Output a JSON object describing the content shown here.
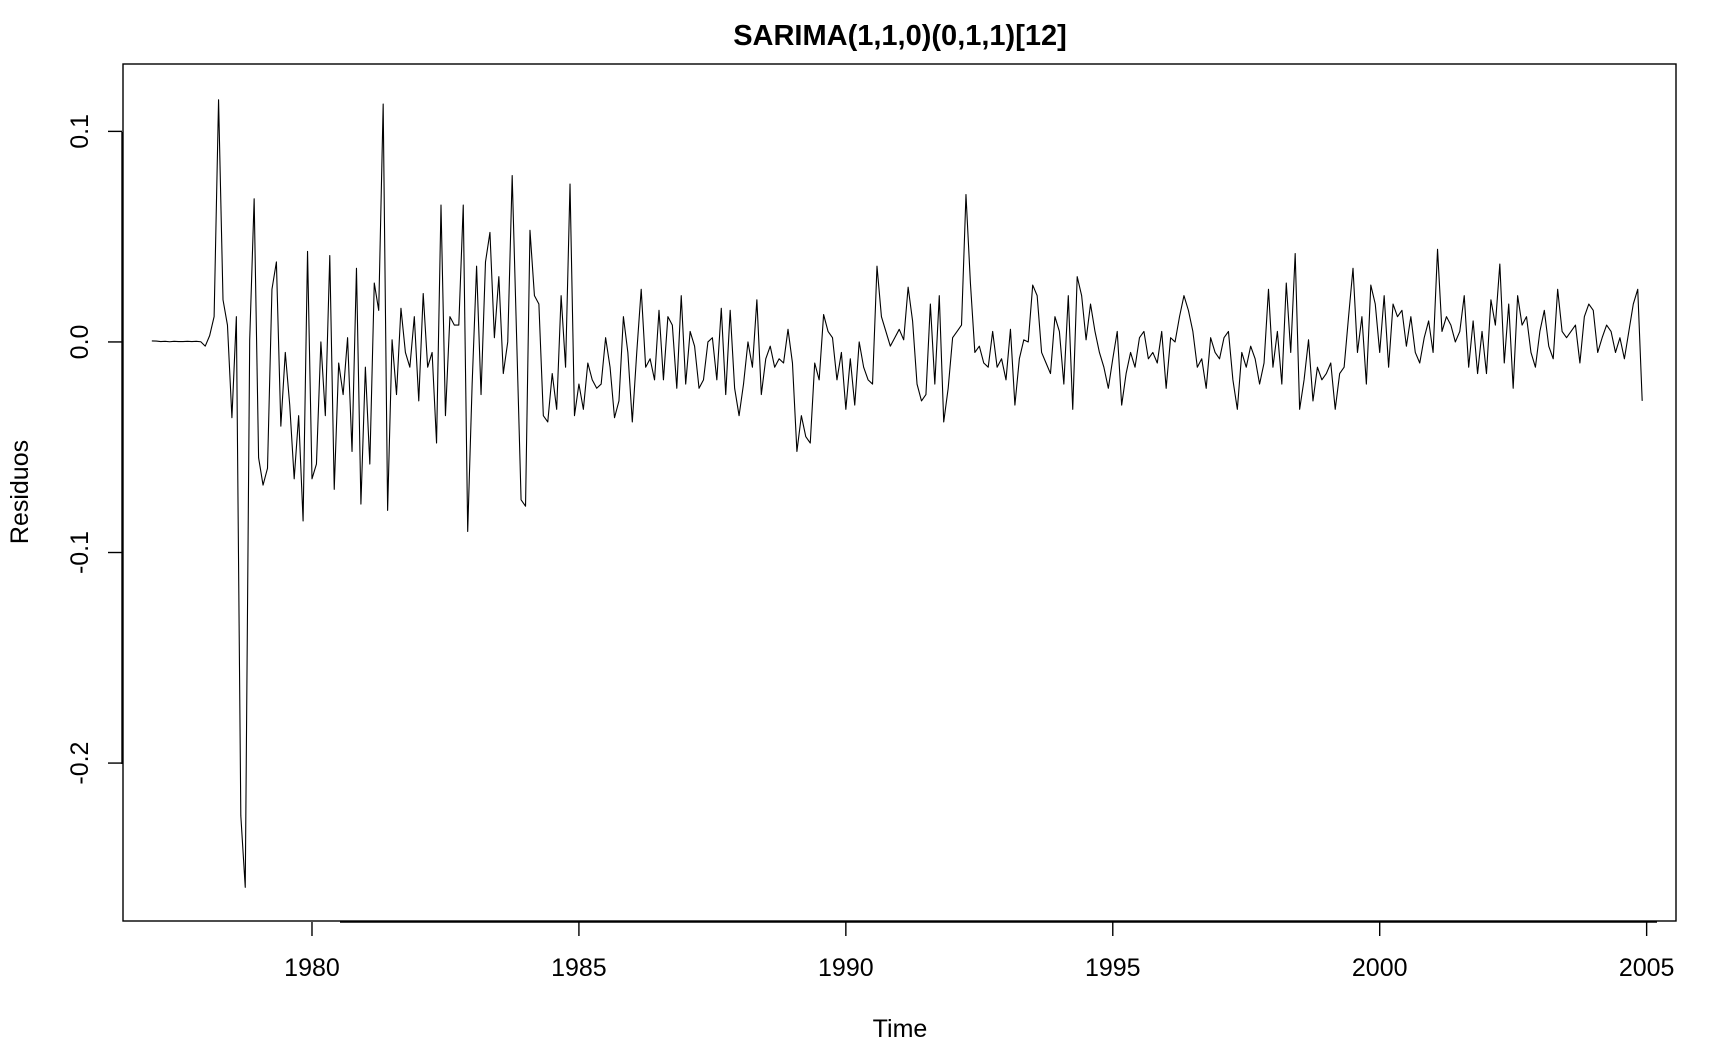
{
  "chart_data": {
    "type": "line",
    "title": "SARIMA(1,1,0)(0,1,1)[12]",
    "xlabel": "Time",
    "ylabel": "Residuos",
    "xlim": [
      1976.46,
      2005.55
    ],
    "ylim": [
      -0.275,
      0.132
    ],
    "x_ticks": [
      1980,
      1985,
      1990,
      1995,
      2000,
      2005
    ],
    "x_tick_labels": [
      "1980",
      "1985",
      "1990",
      "1995",
      "2000",
      "2005"
    ],
    "y_ticks": [
      -0.2,
      -0.1,
      0.0,
      0.1
    ],
    "y_tick_labels": [
      "-0.2",
      "-0.1",
      "0.0",
      "0.1"
    ],
    "grid": false,
    "legend": null,
    "line_color": "#000000",
    "series": [
      {
        "x_start": 1977.0,
        "frequency": 12,
        "values": [
          0.0005,
          0.0004,
          0.0002,
          0.0003,
          0.0001,
          0.0003,
          0.0002,
          0.0002,
          0.0003,
          0.0002,
          0.0003,
          0.0001,
          -0.002,
          0.003,
          0.012,
          0.115,
          0.02,
          0.008,
          -0.036,
          0.012,
          -0.225,
          -0.259,
          0.001,
          0.068,
          -0.055,
          -0.068,
          -0.06,
          0.025,
          0.038,
          -0.04,
          -0.005,
          -0.03,
          -0.065,
          -0.035,
          -0.085,
          0.043,
          -0.065,
          -0.058,
          0.0,
          -0.035,
          0.041,
          -0.07,
          -0.01,
          -0.025,
          0.002,
          -0.052,
          0.035,
          -0.077,
          -0.012,
          -0.058,
          0.028,
          0.015,
          0.113,
          -0.08,
          0.001,
          -0.025,
          0.016,
          -0.005,
          -0.012,
          0.012,
          -0.028,
          0.023,
          -0.012,
          -0.005,
          -0.048,
          0.065,
          -0.035,
          0.012,
          0.008,
          0.008,
          0.065,
          -0.09,
          -0.02,
          0.036,
          -0.025,
          0.038,
          0.052,
          0.002,
          0.031,
          -0.015,
          0.0,
          0.079,
          0.002,
          -0.075,
          -0.078,
          0.053,
          0.022,
          0.018,
          -0.035,
          -0.038,
          -0.015,
          -0.032,
          0.022,
          -0.012,
          0.075,
          -0.035,
          -0.02,
          -0.032,
          -0.01,
          -0.018,
          -0.022,
          -0.02,
          0.002,
          -0.012,
          -0.036,
          -0.028,
          0.012,
          -0.005,
          -0.038,
          -0.005,
          0.025,
          -0.012,
          -0.008,
          -0.018,
          0.015,
          -0.018,
          0.012,
          0.008,
          -0.022,
          0.022,
          -0.02,
          0.005,
          -0.002,
          -0.022,
          -0.018,
          0.0,
          0.002,
          -0.018,
          0.016,
          -0.025,
          0.015,
          -0.022,
          -0.035,
          -0.02,
          0.0,
          -0.012,
          0.02,
          -0.025,
          -0.008,
          -0.002,
          -0.012,
          -0.008,
          -0.01,
          0.006,
          -0.01,
          -0.052,
          -0.035,
          -0.045,
          -0.048,
          -0.01,
          -0.018,
          0.013,
          0.005,
          0.002,
          -0.018,
          -0.005,
          -0.032,
          -0.008,
          -0.03,
          0.0,
          -0.012,
          -0.018,
          -0.02,
          0.036,
          0.012,
          0.005,
          -0.002,
          0.002,
          0.006,
          0.001,
          0.026,
          0.01,
          -0.02,
          -0.028,
          -0.025,
          0.018,
          -0.02,
          0.022,
          -0.038,
          -0.022,
          0.002,
          0.005,
          0.008,
          0.07,
          0.028,
          -0.005,
          -0.002,
          -0.01,
          -0.012,
          0.005,
          -0.012,
          -0.008,
          -0.018,
          0.006,
          -0.03,
          -0.008,
          0.001,
          0.0,
          0.027,
          0.022,
          -0.005,
          -0.01,
          -0.015,
          0.012,
          0.005,
          -0.02,
          0.022,
          -0.032,
          0.031,
          0.022,
          0.001,
          0.018,
          0.005,
          -0.005,
          -0.012,
          -0.022,
          -0.008,
          0.005,
          -0.03,
          -0.015,
          -0.005,
          -0.012,
          0.002,
          0.005,
          -0.008,
          -0.005,
          -0.01,
          0.005,
          -0.022,
          0.002,
          0.0,
          0.012,
          0.022,
          0.015,
          0.005,
          -0.012,
          -0.008,
          -0.022,
          0.002,
          -0.005,
          -0.008,
          0.002,
          0.005,
          -0.018,
          -0.032,
          -0.005,
          -0.012,
          -0.002,
          -0.008,
          -0.02,
          -0.01,
          0.025,
          -0.012,
          0.005,
          -0.02,
          0.028,
          -0.005,
          0.042,
          -0.032,
          -0.018,
          0.001,
          -0.028,
          -0.012,
          -0.018,
          -0.015,
          -0.01,
          -0.032,
          -0.015,
          -0.012,
          0.012,
          0.035,
          -0.005,
          0.012,
          -0.02,
          0.027,
          0.018,
          -0.005,
          0.022,
          -0.012,
          0.018,
          0.012,
          0.015,
          -0.002,
          0.012,
          -0.005,
          -0.01,
          0.002,
          0.01,
          -0.005,
          0.044,
          0.005,
          0.012,
          0.008,
          0.0,
          0.005,
          0.022,
          -0.012,
          0.01,
          -0.015,
          0.005,
          -0.015,
          0.02,
          0.008,
          0.037,
          -0.01,
          0.018,
          -0.022,
          0.022,
          0.008,
          0.012,
          -0.005,
          -0.012,
          0.005,
          0.015,
          -0.002,
          -0.008,
          0.025,
          0.005,
          0.002,
          0.005,
          0.008,
          -0.01,
          0.012,
          0.018,
          0.015,
          -0.005,
          0.002,
          0.008,
          0.005,
          -0.005,
          0.002,
          -0.008,
          0.005,
          0.018,
          0.025,
          -0.028
        ]
      }
    ]
  }
}
